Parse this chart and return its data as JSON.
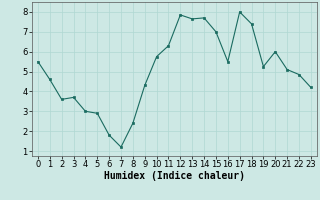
{
  "x": [
    0,
    1,
    2,
    3,
    4,
    5,
    6,
    7,
    8,
    9,
    10,
    11,
    12,
    13,
    14,
    15,
    16,
    17,
    18,
    19,
    20,
    21,
    22,
    23
  ],
  "y": [
    5.5,
    4.6,
    3.6,
    3.7,
    3.0,
    2.9,
    1.8,
    1.2,
    2.4,
    4.3,
    5.75,
    6.3,
    7.85,
    7.65,
    7.7,
    7.0,
    5.5,
    8.0,
    7.4,
    5.25,
    6.0,
    5.1,
    4.85,
    4.2
  ],
  "bg_color": "#cde8e4",
  "line_color": "#1a6b60",
  "marker_color": "#1a6b60",
  "grid_color": "#b0d8d2",
  "xlabel": "Humidex (Indice chaleur)",
  "xlim": [
    -0.5,
    23.5
  ],
  "ylim": [
    0.75,
    8.5
  ],
  "xticks": [
    0,
    1,
    2,
    3,
    4,
    5,
    6,
    7,
    8,
    9,
    10,
    11,
    12,
    13,
    14,
    15,
    16,
    17,
    18,
    19,
    20,
    21,
    22,
    23
  ],
  "yticks": [
    1,
    2,
    3,
    4,
    5,
    6,
    7,
    8
  ],
  "tick_fontsize": 6,
  "xlabel_fontsize": 7,
  "bg_axes_color": "#cde8e4"
}
